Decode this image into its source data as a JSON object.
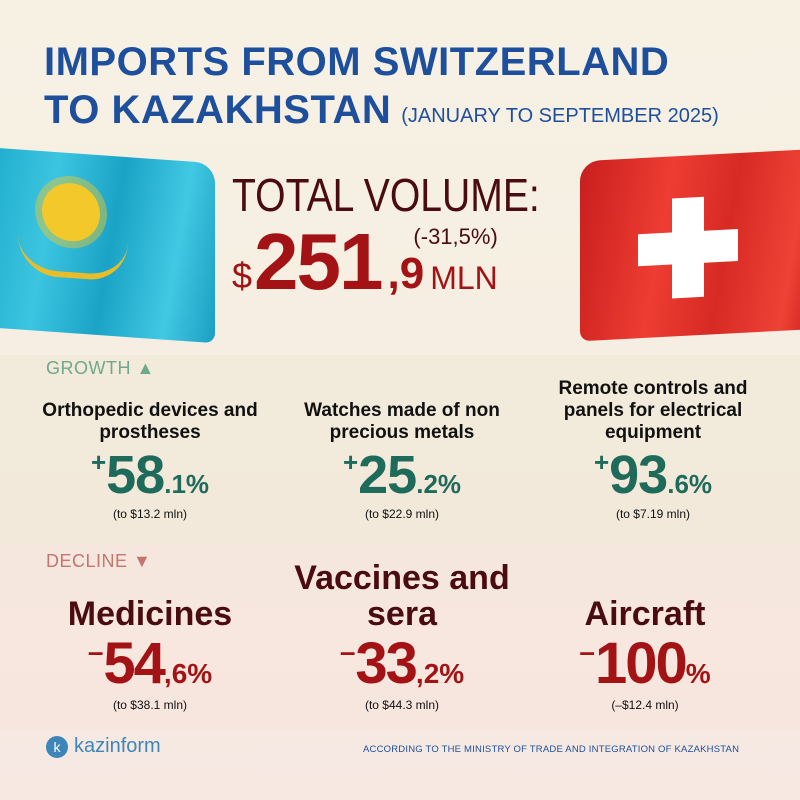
{
  "title": {
    "line1": "IMPORTS FROM SWITZERLAND",
    "line2": "TO KAZAKHSTAN",
    "period": "(JANUARY TO SEPTEMBER 2025)"
  },
  "total": {
    "label": "TOTAL VOLUME:",
    "currency": "$",
    "value_main": "251",
    "value_decimal": ",9",
    "unit": "MLN",
    "change": "(-31,5%)"
  },
  "flags": {
    "left": "kazakhstan-flag",
    "right": "switzerland-flag"
  },
  "growth": {
    "label": "GROWTH",
    "marker": "▲",
    "color": "#1f6b5b",
    "items": [
      {
        "title": "Orthopedic devices and prostheses",
        "sign": "+",
        "big": "58",
        "small": ".1%",
        "note": "(to $13.2 mln)"
      },
      {
        "title": "Watches made of non precious metals",
        "sign": "+",
        "big": "25",
        "small": ".2%",
        "note": "(to $22.9 mln)"
      },
      {
        "title": "Remote controls and panels for electrical equipment",
        "sign": "+",
        "big": "93",
        "small": ".6%",
        "note": "(to $7.19 mln)"
      }
    ]
  },
  "decline": {
    "label": "DECLINE",
    "marker": "▼",
    "color": "#a31214",
    "items": [
      {
        "title": "Medicines",
        "sign": "–",
        "big": "54",
        "small": ",6%",
        "note": "(to $38.1 mln)"
      },
      {
        "title": "Vaccines and sera",
        "sign": "–",
        "big": "33",
        "small": ",2%",
        "note": "(to $44.3 mln)"
      },
      {
        "title": "Aircraft",
        "sign": "–",
        "big": "100",
        "small": "%",
        "note": "(–$12.4 mln)"
      }
    ]
  },
  "footer": {
    "logo_letter": "k",
    "logo_text": "kazinform",
    "source": "ACCORDING TO THE MINISTRY OF TRADE AND INTEGRATION OF KAZAKHSTAN"
  }
}
